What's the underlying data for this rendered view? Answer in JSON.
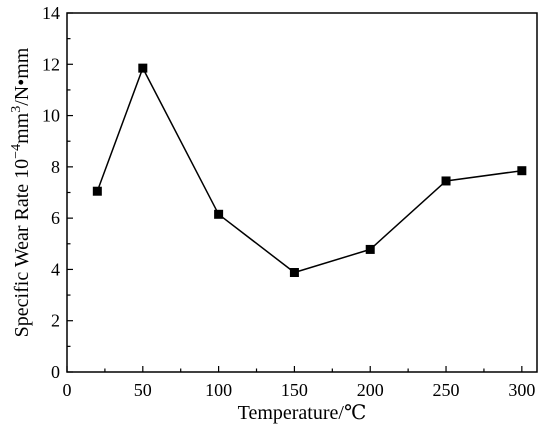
{
  "chart_data": {
    "type": "line",
    "xlabel": "Temperature/℃",
    "ylabel": {
      "prefix": "Specific Wear Rate 10",
      "exp1": "−4",
      "mid": "mm",
      "exp2": "3",
      "suffix": "/N•mm"
    },
    "xlim": [
      0,
      310
    ],
    "ylim": [
      0,
      14
    ],
    "x_ticks": [
      0,
      50,
      100,
      150,
      200,
      250,
      300
    ],
    "y_ticks": [
      0,
      2,
      4,
      6,
      8,
      10,
      12,
      14
    ],
    "x_tick_labels": [
      "0",
      "50",
      "100",
      "150",
      "200",
      "250",
      "300"
    ],
    "y_tick_labels": [
      "0",
      "2",
      "4",
      "6",
      "8",
      "10",
      "12",
      "14"
    ],
    "series": [
      {
        "x": [
          20,
          50,
          100,
          150,
          200,
          250,
          300
        ],
        "y": [
          7.05,
          11.85,
          6.15,
          3.88,
          4.78,
          7.45,
          7.85
        ],
        "marker": "square",
        "color": "#000000"
      }
    ],
    "grid": false,
    "legend": "none"
  }
}
